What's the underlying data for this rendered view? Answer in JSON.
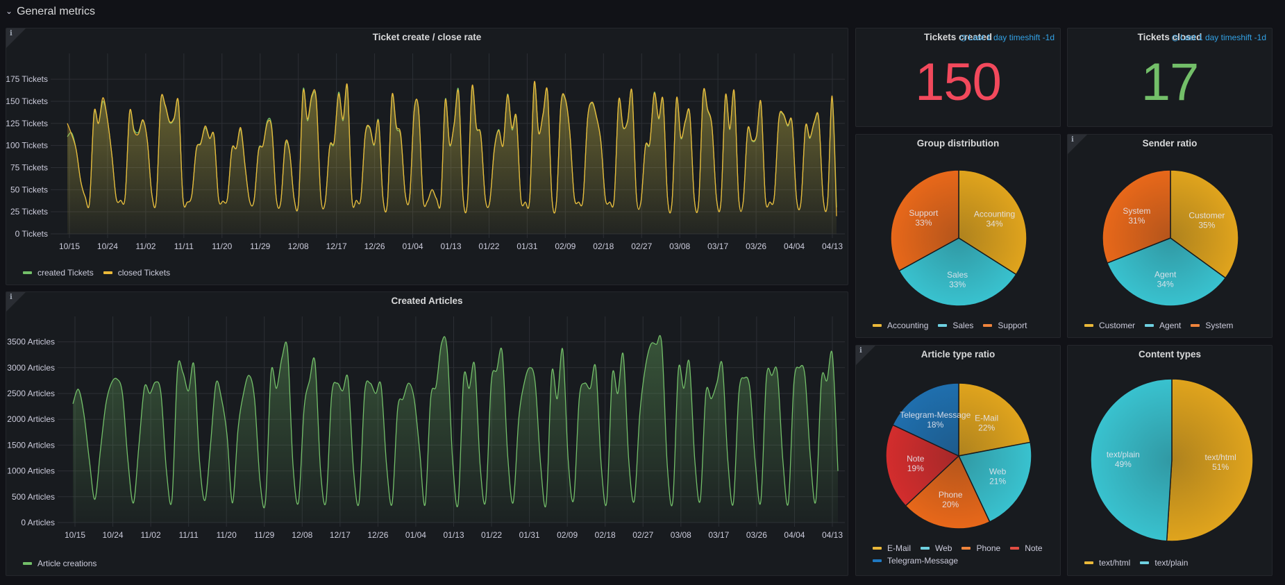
{
  "row": {
    "title": "General metrics",
    "collapse_icon": "chevron-down-icon"
  },
  "colors": {
    "yellow": "#eab839",
    "green": "#73bf69",
    "red": "#f2495c",
    "pie_yellow": "#e0a41d",
    "pie_cyan": "#39c2cf",
    "pie_orange": "#e8681a",
    "pie_red": "#d32d2d",
    "pie_blue": "#1f6fae"
  },
  "panels": {
    "ticket_rate": {
      "title": "Ticket create / close rate",
      "info_icon": "info-icon"
    },
    "articles": {
      "title": "Created Articles",
      "info_icon": "info-icon"
    },
    "tickets_created": {
      "title": "Tickets created",
      "timeshift": "Last 1 day timeshift -1d",
      "value": "150",
      "color": "#f2495c"
    },
    "tickets_closed": {
      "title": "Tickets closed",
      "timeshift": "Last 1 day timeshift -1d",
      "value": "17",
      "color": "#73bf69"
    },
    "group_distribution": {
      "title": "Group distribution"
    },
    "sender_ratio": {
      "title": "Sender ratio",
      "info_icon": "info-icon"
    },
    "article_type_ratio": {
      "title": "Article type ratio",
      "info_icon": "info-icon"
    },
    "content_types": {
      "title": "Content types"
    }
  },
  "chart_data": [
    {
      "id": "ticket_rate",
      "type": "area",
      "title": "Ticket create / close rate",
      "ylabel": "",
      "ylim": [
        0,
        190
      ],
      "y_ticks": [
        "0 Tickets",
        "25 Tickets",
        "50 Tickets",
        "75 Tickets",
        "100 Tickets",
        "125 Tickets",
        "150 Tickets",
        "175 Tickets"
      ],
      "y_tick_values": [
        0,
        25,
        50,
        75,
        100,
        125,
        150,
        175
      ],
      "x_ticks": [
        "10/15",
        "10/24",
        "11/02",
        "11/11",
        "11/20",
        "11/29",
        "12/08",
        "12/17",
        "12/26",
        "01/04",
        "01/13",
        "01/22",
        "01/31",
        "02/09",
        "02/18",
        "02/27",
        "03/08",
        "03/17",
        "03/26",
        "04/04",
        "04/13"
      ],
      "legend_position": "bottom-left",
      "series": [
        {
          "name": "created Tickets",
          "color": "#73bf69",
          "values": [
            110,
            114,
            95,
            60,
            42,
            36,
            135,
            125,
            150,
            130,
            90,
            40,
            38,
            42,
            137,
            118,
            115,
            128,
            105,
            45,
            38,
            150,
            145,
            126,
            130,
            148,
            40,
            36,
            44,
            95,
            103,
            120,
            108,
            110,
            40,
            37,
            40,
            95,
            97,
            118,
            75,
            37,
            38,
            95,
            100,
            128,
            120,
            40,
            36,
            100,
            92,
            40,
            36,
            162,
            128,
            155,
            150,
            42,
            36,
            98,
            103,
            160,
            128,
            165,
            40,
            38,
            40,
            112,
            120,
            100,
            128,
            40,
            36,
            155,
            120,
            110,
            45,
            42,
            140,
            140,
            40,
            37,
            50,
            40,
            37,
            152,
            100,
            125,
            162,
            42,
            37,
            165,
            120,
            112,
            40,
            36,
            95,
            118,
            100,
            158,
            118,
            130,
            40,
            36,
            40,
            170,
            115,
            135,
            160,
            40,
            36,
            145,
            152,
            115,
            42,
            36,
            40,
            130,
            148,
            132,
            105,
            40,
            36,
            40,
            150,
            120,
            128,
            160,
            42,
            36,
            98,
            102,
            160,
            130,
            150,
            40,
            36,
            152,
            108,
            127,
            135,
            40,
            36,
            158,
            140,
            120,
            40,
            36,
            155,
            118,
            160,
            40,
            36,
            117,
            105,
            110,
            148,
            40,
            36,
            42,
            128,
            135,
            122,
            125,
            40,
            36,
            120,
            108,
            126,
            130,
            40,
            37,
            155,
            30
          ]
        },
        {
          "name": "closed Tickets",
          "color": "#eab839",
          "values": [
            125,
            112,
            95,
            60,
            42,
            36,
            137,
            125,
            154,
            130,
            90,
            40,
            38,
            42,
            138,
            116,
            113,
            129,
            105,
            45,
            38,
            150,
            146,
            127,
            131,
            149,
            40,
            36,
            44,
            96,
            102,
            122,
            108,
            111,
            40,
            37,
            40,
            96,
            97,
            120,
            76,
            37,
            38,
            94,
            100,
            126,
            118,
            40,
            36,
            102,
            93,
            40,
            36,
            160,
            130,
            157,
            152,
            42,
            36,
            99,
            104,
            158,
            130,
            167,
            40,
            38,
            40,
            113,
            121,
            101,
            127,
            40,
            36,
            156,
            122,
            112,
            45,
            42,
            139,
            141,
            40,
            37,
            50,
            40,
            37,
            151,
            101,
            124,
            160,
            42,
            37,
            166,
            121,
            111,
            40,
            36,
            94,
            117,
            100,
            157,
            120,
            132,
            40,
            36,
            40,
            171,
            114,
            136,
            161,
            40,
            36,
            146,
            153,
            116,
            42,
            36,
            40,
            130,
            149,
            133,
            104,
            40,
            36,
            40,
            151,
            121,
            127,
            161,
            42,
            36,
            99,
            103,
            159,
            131,
            151,
            40,
            36,
            153,
            109,
            128,
            136,
            40,
            36,
            159,
            141,
            121,
            40,
            36,
            156,
            119,
            161,
            40,
            36,
            118,
            106,
            111,
            149,
            40,
            36,
            42,
            129,
            136,
            123,
            126,
            40,
            36,
            121,
            109,
            127,
            131,
            40,
            37,
            156,
            20
          ]
        }
      ]
    },
    {
      "id": "articles",
      "type": "area",
      "title": "Created Articles",
      "ylim": [
        0,
        3750
      ],
      "y_ticks": [
        "0 Articles",
        "500 Articles",
        "1000 Articles",
        "1500 Articles",
        "2000 Articles",
        "2500 Articles",
        "3000 Articles",
        "3500 Articles"
      ],
      "y_tick_values": [
        0,
        500,
        1000,
        1500,
        2000,
        2500,
        3000,
        3500
      ],
      "x_ticks": [
        "10/15",
        "10/24",
        "11/02",
        "11/11",
        "11/20",
        "11/29",
        "12/08",
        "12/17",
        "12/26",
        "01/04",
        "01/13",
        "01/22",
        "01/31",
        "02/09",
        "02/18",
        "02/27",
        "03/08",
        "03/17",
        "03/26",
        "04/04",
        "04/13"
      ],
      "legend_position": "bottom-left",
      "series": [
        {
          "name": "Article creations",
          "color": "#73bf69",
          "values": [
            2300,
            2580,
            2100,
            1200,
            450,
            1400,
            2300,
            2700,
            2780,
            2500,
            1200,
            380,
            1500,
            2620,
            2500,
            2720,
            2500,
            1000,
            450,
            2950,
            2900,
            2550,
            3050,
            1200,
            430,
            1500,
            2700,
            2400,
            1700,
            380,
            1800,
            2500,
            2850,
            2400,
            800,
            420,
            2900,
            2600,
            3200,
            3350,
            1100,
            400,
            2200,
            2750,
            3100,
            1000,
            420,
            2450,
            2700,
            2550,
            2780,
            1000,
            400,
            2500,
            2700,
            2500,
            2650,
            1100,
            370,
            2200,
            2400,
            2700,
            2400,
            1400,
            350,
            2400,
            2650,
            3480,
            3350,
            1200,
            370,
            2800,
            2600,
            3050,
            1100,
            430,
            2700,
            2950,
            3300,
            1300,
            390,
            2000,
            2700,
            3000,
            2700,
            1100,
            380,
            2900,
            2400,
            3350,
            1200,
            450,
            2400,
            2700,
            2600,
            3000,
            1100,
            410,
            2850,
            2500,
            3250,
            1200,
            420,
            2100,
            3000,
            3450,
            3450,
            3450,
            1100,
            420,
            2950,
            2600,
            3100,
            1200,
            440,
            2500,
            2400,
            2700,
            3050,
            1200,
            380,
            2500,
            2800,
            2600,
            1150,
            420,
            2800,
            2850,
            2900,
            1200,
            390,
            2700,
            3000,
            2850,
            1250,
            430,
            2750,
            2750,
            3250,
            1000
          ]
        }
      ]
    },
    {
      "id": "group_distribution",
      "type": "pie",
      "title": "Group distribution",
      "slices": [
        {
          "label": "Accounting",
          "value": 34,
          "display": "34%",
          "color": "#e0a41d"
        },
        {
          "label": "Sales",
          "value": 33,
          "display": "33%",
          "color": "#39c2cf"
        },
        {
          "label": "Support",
          "value": 33,
          "display": "33%",
          "color": "#e8681a"
        }
      ],
      "legend": [
        {
          "label": "Accounting",
          "color": "#eab839"
        },
        {
          "label": "Sales",
          "color": "#6ed0e0"
        },
        {
          "label": "Support",
          "color": "#ef843c"
        }
      ]
    },
    {
      "id": "sender_ratio",
      "type": "pie",
      "title": "Sender ratio",
      "slices": [
        {
          "label": "Customer",
          "value": 35,
          "display": "35%",
          "color": "#e0a41d"
        },
        {
          "label": "Agent",
          "value": 34,
          "display": "34%",
          "color": "#39c2cf"
        },
        {
          "label": "System",
          "value": 31,
          "display": "31%",
          "color": "#e8681a"
        }
      ],
      "legend": [
        {
          "label": "Customer",
          "color": "#eab839"
        },
        {
          "label": "Agent",
          "color": "#6ed0e0"
        },
        {
          "label": "System",
          "color": "#ef843c"
        }
      ]
    },
    {
      "id": "article_type_ratio",
      "type": "pie",
      "title": "Article type ratio",
      "slices": [
        {
          "label": "E-Mail",
          "value": 22,
          "display": "22%",
          "color": "#e0a41d"
        },
        {
          "label": "Web",
          "value": 21,
          "display": "21%",
          "color": "#39c2cf"
        },
        {
          "label": "Phone",
          "value": 20,
          "display": "20%",
          "color": "#e8681a"
        },
        {
          "label": "Note",
          "value": 19,
          "display": "19%",
          "color": "#d32d2d"
        },
        {
          "label": "Telegram-Message",
          "value": 18,
          "display": "18%",
          "color": "#1f6fae"
        }
      ],
      "legend": [
        {
          "label": "E-Mail",
          "color": "#eab839"
        },
        {
          "label": "Web",
          "color": "#6ed0e0"
        },
        {
          "label": "Phone",
          "color": "#ef843c"
        },
        {
          "label": "Note",
          "color": "#e24d42"
        },
        {
          "label": "Telegram-Message",
          "color": "#1f78c1"
        }
      ]
    },
    {
      "id": "content_types",
      "type": "pie",
      "title": "Content types",
      "slices": [
        {
          "label": "text/html",
          "value": 51,
          "display": "51%",
          "color": "#e0a41d"
        },
        {
          "label": "text/plain",
          "value": 49,
          "display": "49%",
          "color": "#39c2cf"
        }
      ],
      "legend": [
        {
          "label": "text/html",
          "color": "#eab839"
        },
        {
          "label": "text/plain",
          "color": "#6ed0e0"
        }
      ]
    }
  ]
}
